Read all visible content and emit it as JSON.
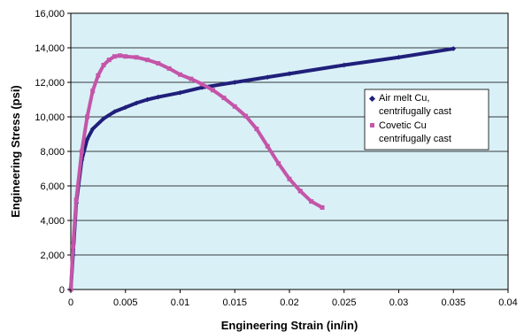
{
  "chart_data": {
    "type": "line",
    "xlabel": "Engineering Strain (in/in)",
    "ylabel": "Engineering Stress (psi)",
    "xlim": [
      0,
      0.04
    ],
    "ylim": [
      0,
      16000
    ],
    "x_ticks": [
      "0",
      "0.005",
      "0.01",
      "0.015",
      "0.02",
      "0.025",
      "0.03",
      "0.035",
      "0.04"
    ],
    "y_ticks": [
      "0",
      "2,000",
      "4,000",
      "6,000",
      "8,000",
      "10,000",
      "12,000",
      "14,000",
      "16,000"
    ],
    "plot_background": "#d9f0f7",
    "grid": "horizontal",
    "legend_position": "right",
    "series": [
      {
        "name": "Air melt Cu, centrifugally cast",
        "color": "#1f1f7a",
        "marker": "diamond",
        "points": [
          [
            0,
            0
          ],
          [
            0.0002,
            2000
          ],
          [
            0.0005,
            5000
          ],
          [
            0.001,
            7500
          ],
          [
            0.0015,
            8700
          ],
          [
            0.002,
            9300
          ],
          [
            0.003,
            9900
          ],
          [
            0.004,
            10300
          ],
          [
            0.005,
            10550
          ],
          [
            0.006,
            10800
          ],
          [
            0.007,
            11000
          ],
          [
            0.008,
            11150
          ],
          [
            0.01,
            11400
          ],
          [
            0.012,
            11700
          ],
          [
            0.015,
            12000
          ],
          [
            0.018,
            12300
          ],
          [
            0.02,
            12500
          ],
          [
            0.025,
            13000
          ],
          [
            0.03,
            13450
          ],
          [
            0.035,
            13950
          ]
        ]
      },
      {
        "name": "Covetic Cu centrifugally cast",
        "color": "#c455a8",
        "marker": "square",
        "points": [
          [
            0,
            0
          ],
          [
            0.0002,
            2500
          ],
          [
            0.0005,
            5200
          ],
          [
            0.001,
            8000
          ],
          [
            0.0015,
            10000
          ],
          [
            0.002,
            11500
          ],
          [
            0.0025,
            12400
          ],
          [
            0.003,
            13000
          ],
          [
            0.0035,
            13300
          ],
          [
            0.004,
            13500
          ],
          [
            0.0045,
            13550
          ],
          [
            0.005,
            13500
          ],
          [
            0.006,
            13450
          ],
          [
            0.007,
            13300
          ],
          [
            0.008,
            13100
          ],
          [
            0.009,
            12800
          ],
          [
            0.01,
            12450
          ],
          [
            0.011,
            12200
          ],
          [
            0.012,
            11900
          ],
          [
            0.013,
            11550
          ],
          [
            0.014,
            11100
          ],
          [
            0.015,
            10600
          ],
          [
            0.016,
            10050
          ],
          [
            0.017,
            9300
          ],
          [
            0.018,
            8300
          ],
          [
            0.019,
            7300
          ],
          [
            0.02,
            6400
          ],
          [
            0.021,
            5700
          ],
          [
            0.022,
            5100
          ],
          [
            0.023,
            4750
          ]
        ]
      }
    ]
  }
}
